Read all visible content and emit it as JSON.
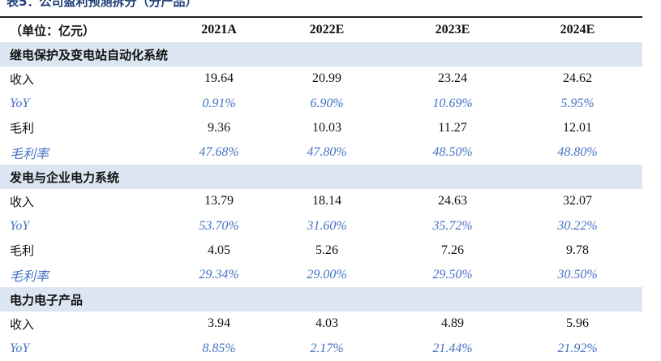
{
  "title": "表5：公司盈利预测拆分（分产品）",
  "header": {
    "unit": "（单位：亿元）",
    "years": [
      "2021A",
      "2022E",
      "2023E",
      "2024E"
    ]
  },
  "sections": [
    {
      "name": "继电保护及变电站自动化系统",
      "rows": [
        {
          "label": "收入",
          "values": [
            "19.64",
            "20.99",
            "23.24",
            "24.62"
          ],
          "italic": false
        },
        {
          "label": "YoY",
          "values": [
            "0.91%",
            "6.90%",
            "10.69%",
            "5.95%"
          ],
          "italic": true
        },
        {
          "label": "毛利",
          "values": [
            "9.36",
            "10.03",
            "11.27",
            "12.01"
          ],
          "italic": false
        },
        {
          "label": "毛利率",
          "values": [
            "47.68%",
            "47.80%",
            "48.50%",
            "48.80%"
          ],
          "italic": true
        }
      ]
    },
    {
      "name": "发电与企业电力系统",
      "rows": [
        {
          "label": "收入",
          "values": [
            "13.79",
            "18.14",
            "24.63",
            "32.07"
          ],
          "italic": false
        },
        {
          "label": "YoY",
          "values": [
            "53.70%",
            "31.60%",
            "35.72%",
            "30.22%"
          ],
          "italic": true
        },
        {
          "label": "毛利",
          "values": [
            "4.05",
            "5.26",
            "7.26",
            "9.78"
          ],
          "italic": false
        },
        {
          "label": "毛利率",
          "values": [
            "29.34%",
            "29.00%",
            "29.50%",
            "30.50%"
          ],
          "italic": true
        }
      ]
    },
    {
      "name": "电力电子产品",
      "rows": [
        {
          "label": "收入",
          "values": [
            "3.94",
            "4.03",
            "4.89",
            "5.96"
          ],
          "italic": false
        },
        {
          "label": "YoY",
          "values": [
            "8.85%",
            "2.17%",
            "21.44%",
            "21.92%"
          ],
          "italic": true
        }
      ]
    }
  ],
  "colors": {
    "section_bg": "#dce6f2",
    "italic_text": "#4472c4",
    "title": "#1f3f78"
  }
}
